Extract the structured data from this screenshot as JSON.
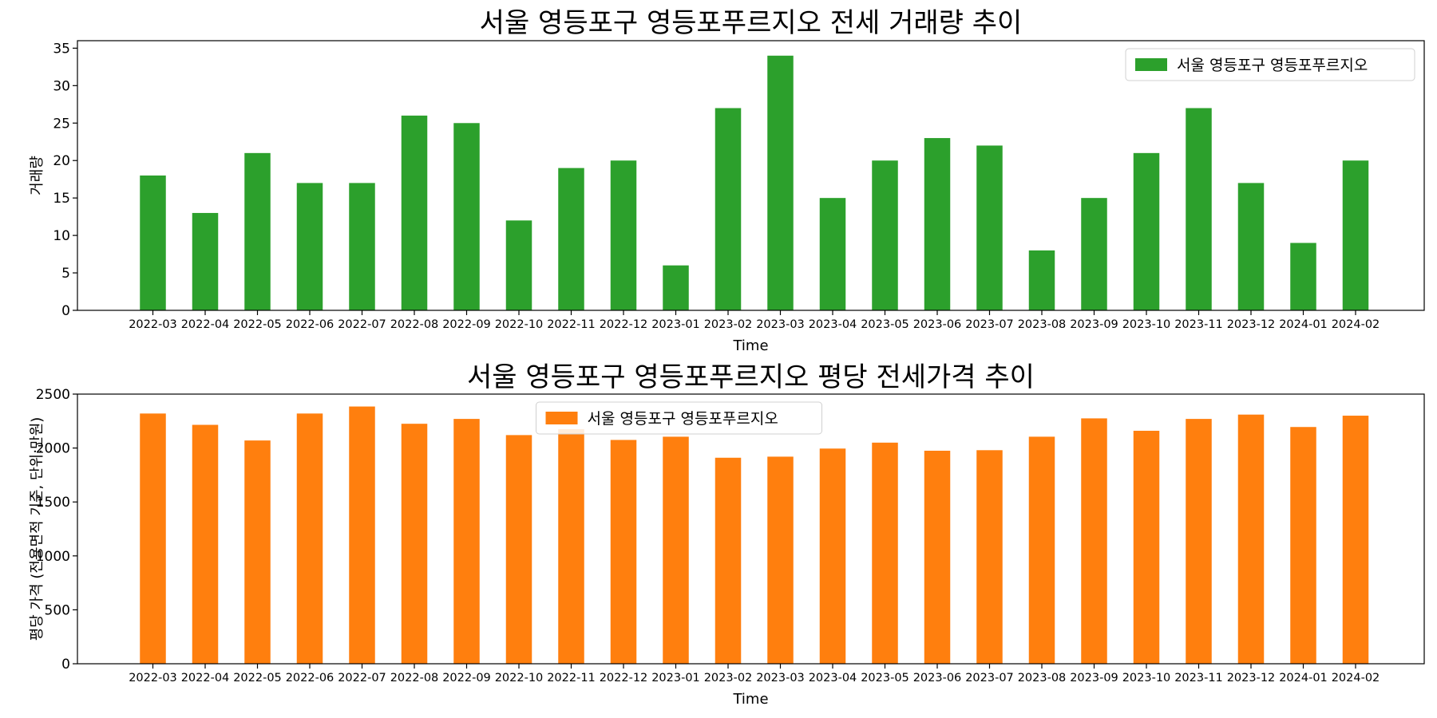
{
  "chart_data": [
    {
      "type": "bar",
      "title": "서울 영등포구 영등포푸르지오 전세 거래량 추이",
      "xlabel": "Time",
      "ylabel": "거래량",
      "ylim": [
        0,
        36
      ],
      "yticks": [
        0,
        5,
        10,
        15,
        20,
        25,
        30,
        35
      ],
      "grid": false,
      "legend_position": "top-right",
      "categories": [
        "2022-03",
        "2022-04",
        "2022-05",
        "2022-06",
        "2022-07",
        "2022-08",
        "2022-09",
        "2022-10",
        "2022-11",
        "2022-12",
        "2023-01",
        "2023-02",
        "2023-03",
        "2023-04",
        "2023-05",
        "2023-06",
        "2023-07",
        "2023-08",
        "2023-09",
        "2023-10",
        "2023-11",
        "2023-12",
        "2024-01",
        "2024-02"
      ],
      "series": [
        {
          "name": "서울 영등포구 영등포푸르지오",
          "color": "#2ca02c",
          "values": [
            18,
            13,
            21,
            17,
            17,
            26,
            25,
            12,
            19,
            20,
            6,
            27,
            34,
            15,
            20,
            23,
            22,
            8,
            15,
            21,
            27,
            17,
            9,
            20
          ]
        }
      ]
    },
    {
      "type": "bar",
      "title": "서울 영등포구 영등포푸르지오 평당 전세가격 추이",
      "xlabel": "Time",
      "ylabel": "평당 가격 (전용면적 기준, 단위:만원)",
      "ylim": [
        0,
        2500
      ],
      "yticks": [
        0,
        500,
        1000,
        1500,
        2000,
        2500
      ],
      "grid": false,
      "legend_position": "top-center",
      "categories": [
        "2022-03",
        "2022-04",
        "2022-05",
        "2022-06",
        "2022-07",
        "2022-08",
        "2022-09",
        "2022-10",
        "2022-11",
        "2022-12",
        "2023-01",
        "2023-02",
        "2023-03",
        "2023-04",
        "2023-05",
        "2023-06",
        "2023-07",
        "2023-08",
        "2023-09",
        "2023-10",
        "2023-11",
        "2023-12",
        "2024-01",
        "2024-02"
      ],
      "series": [
        {
          "name": "서울 영등포구 영등포푸르지오",
          "color": "#ff7f0e",
          "values": [
            2320,
            2215,
            2070,
            2320,
            2385,
            2225,
            2270,
            2120,
            2175,
            2075,
            2105,
            1910,
            1920,
            1995,
            2050,
            1975,
            1980,
            2105,
            2275,
            2160,
            2270,
            2310,
            2195,
            2300
          ]
        }
      ]
    }
  ]
}
